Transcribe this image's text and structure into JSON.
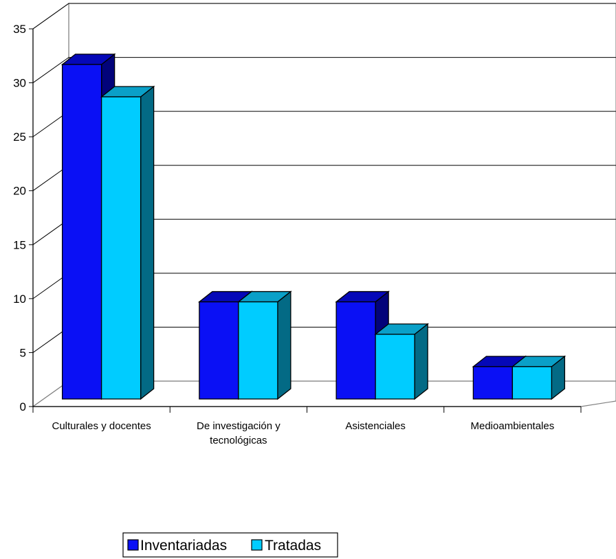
{
  "chart_data": {
    "type": "bar",
    "title": "",
    "xlabel": "",
    "ylabel": "",
    "ylim": [
      0,
      35
    ],
    "y_ticks": [
      0,
      5,
      10,
      15,
      20,
      25,
      30,
      35
    ],
    "grid": true,
    "three_d": true,
    "legend_position": "bottom",
    "categories": [
      [
        "Culturales y docentes"
      ],
      [
        "De investigación y",
        "tecnológicas"
      ],
      [
        "Asistenciales"
      ],
      [
        "Medioambientales"
      ]
    ],
    "series": [
      {
        "name": "Inventariadas",
        "values": [
          31,
          9,
          9,
          3
        ],
        "color_front": "#0a10f5",
        "color_top": "#0508b8",
        "color_side": "#02037a"
      },
      {
        "name": "Tratadas",
        "values": [
          28,
          9,
          6,
          3
        ],
        "color_front": "#00ccff",
        "color_top": "#0aa0c8",
        "color_side": "#036a85"
      }
    ]
  }
}
